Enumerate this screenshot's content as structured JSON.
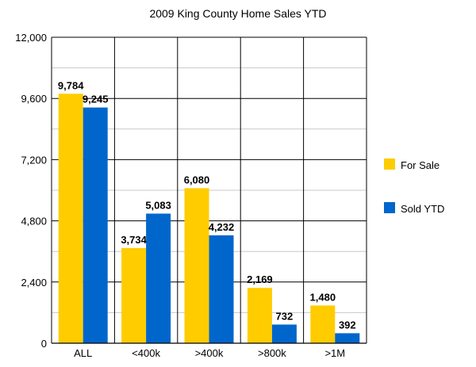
{
  "chart_data": {
    "type": "bar",
    "title": "2009 King County Home Sales YTD",
    "categories": [
      "ALL",
      "<400k",
      ">400k",
      ">800k",
      ">1M"
    ],
    "series": [
      {
        "name": "For Sale",
        "color": "#FFCC00",
        "values": [
          9784,
          3734,
          6080,
          2169,
          1480
        ],
        "labels": [
          "9,784",
          "3,734",
          "6,080",
          "2,169",
          "1,480"
        ]
      },
      {
        "name": "Sold YTD",
        "color": "#0066CC",
        "values": [
          9245,
          5083,
          4232,
          732,
          392
        ],
        "labels": [
          "9,245",
          "5,083",
          "4,232",
          "732",
          "392"
        ]
      }
    ],
    "yticks": [
      0,
      2400,
      4800,
      7200,
      9600,
      12000
    ],
    "ytick_labels": [
      "0",
      "2,400",
      "4,800",
      "7,200",
      "9,600",
      "12,000"
    ],
    "ylim": [
      0,
      12000
    ],
    "grid": true,
    "legend_position": "right"
  }
}
